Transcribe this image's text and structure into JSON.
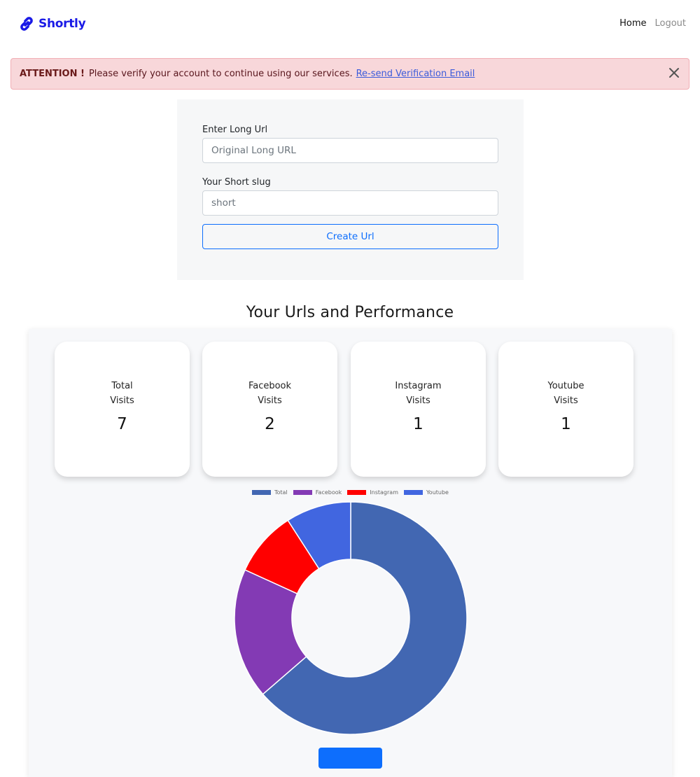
{
  "navbar": {
    "brand": "Shortly",
    "links": [
      {
        "label": "Home"
      },
      {
        "label": "Logout"
      }
    ]
  },
  "alert": {
    "title": "ATTENTION !",
    "message": "Please verify your account to continue using our services.",
    "link": "Re-send Verification Email"
  },
  "form": {
    "long_url_label": "Enter Long Url",
    "long_url_placeholder": "Original Long URL",
    "slug_label": "Your Short slug",
    "slug_placeholder": "short",
    "submit_label": "Create Url"
  },
  "performance": {
    "title": "Your Urls and Performance",
    "stats": [
      {
        "line1": "Total",
        "line2": "Visits",
        "value": "7"
      },
      {
        "line1": "Facebook",
        "line2": "Visits",
        "value": "2"
      },
      {
        "line1": "Instagram",
        "line2": "Visits",
        "value": "1"
      },
      {
        "line1": "Youtube",
        "line2": "Visits",
        "value": "1"
      }
    ],
    "visit_button": ""
  },
  "colors": {
    "brand": "#1a1ae6",
    "alert_bg": "#f8d7da",
    "primary": "#0d6efd"
  },
  "chart_data": {
    "type": "pie",
    "variant": "doughnut",
    "categories": [
      "Total",
      "Facebook",
      "Instagram",
      "Youtube"
    ],
    "values": [
      7,
      2,
      1,
      1
    ],
    "colors": [
      "#4267B2",
      "#833AB4",
      "#FF0000",
      "#4166E0"
    ],
    "legend": "top"
  }
}
